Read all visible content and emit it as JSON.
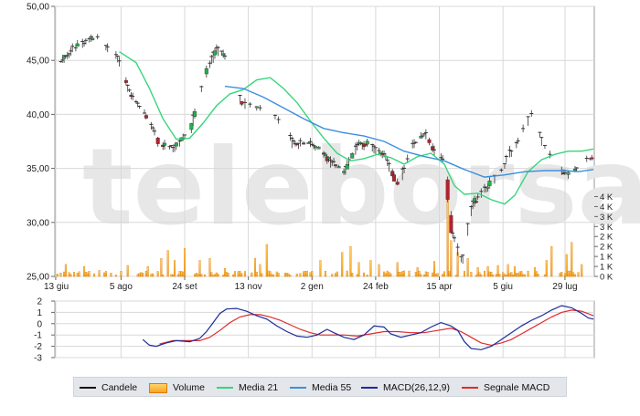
{
  "watermark": "teleborsa",
  "colors": {
    "up": "#22b24c",
    "down": "#b5222f",
    "wick": "#333333",
    "volume_fill": "#f5a623",
    "volume_edge": "#e07a00",
    "media21": "#36d67a",
    "media55": "#3a8fde",
    "macd": "#1b2c9c",
    "signal": "#e02a2a",
    "grid": "#d8d8d8"
  },
  "legend": [
    {
      "label": "Candele",
      "icon": "candle-line-swatch"
    },
    {
      "label": "Volume",
      "icon": "volume-bar-swatch"
    },
    {
      "label": "Media 21",
      "icon": "media21-line-swatch"
    },
    {
      "label": "Media 55",
      "icon": "media55-line-swatch"
    },
    {
      "label": "MACD(26,12,9)",
      "icon": "macd-line-swatch"
    },
    {
      "label": "Segnale MACD",
      "icon": "signal-line-swatch"
    }
  ],
  "chart_data": [
    {
      "type": "candlestick",
      "x_tick_labels": [
        "13 giu",
        "5 ago",
        "24 set",
        "13 nov",
        "2 gen",
        "24 feb",
        "15 apr",
        "5 giu",
        "29 lug"
      ],
      "x_tick_index": [
        0,
        39,
        77,
        115,
        153,
        191,
        229,
        267,
        304
      ],
      "ylim": [
        25,
        50
      ],
      "y_ticks": [
        "25,00",
        "30,00",
        "35,00",
        "40,00",
        "45,00",
        "50,00"
      ],
      "volume_ticks": [
        "0 K",
        "1 K",
        "1 K",
        "2 K",
        "2 K",
        "3 K",
        "3 K",
        "4 K",
        "4 K"
      ],
      "volume_max": 4250,
      "grid": true,
      "series": [
        {
          "name": "Candele",
          "kind": "ohlc"
        },
        {
          "name": "Volume",
          "kind": "bar",
          "axis": "right"
        },
        {
          "name": "Media 21",
          "kind": "line"
        },
        {
          "name": "Media 55",
          "kind": "line"
        }
      ],
      "price_path": [
        [
          0,
          44.6
        ],
        [
          12,
          46.3
        ],
        [
          24,
          47.1
        ],
        [
          36,
          45.4
        ],
        [
          44,
          41.8
        ],
        [
          54,
          39.7
        ],
        [
          62,
          37.2
        ],
        [
          70,
          36.9
        ],
        [
          80,
          38.6
        ],
        [
          88,
          43.4
        ],
        [
          96,
          46.2
        ],
        [
          104,
          44.6
        ],
        [
          110,
          41.2
        ],
        [
          118,
          40.8
        ],
        [
          126,
          40.2
        ],
        [
          134,
          39.3
        ],
        [
          142,
          37.3
        ],
        [
          150,
          37.4
        ],
        [
          158,
          36.6
        ],
        [
          164,
          35.6
        ],
        [
          172,
          34.6
        ],
        [
          180,
          37.3
        ],
        [
          188,
          37.2
        ],
        [
          196,
          36.1
        ],
        [
          204,
          33.4
        ],
        [
          212,
          37.0
        ],
        [
          220,
          38.3
        ],
        [
          226,
          36.4
        ],
        [
          232,
          35.6
        ],
        [
          236,
          29.0
        ],
        [
          242,
          26.4
        ],
        [
          248,
          31.6
        ],
        [
          254,
          32.7
        ],
        [
          262,
          34.1
        ],
        [
          270,
          36.1
        ],
        [
          278,
          38.4
        ],
        [
          284,
          40.2
        ],
        [
          290,
          37.4
        ],
        [
          298,
          35.2
        ],
        [
          304,
          34.3
        ],
        [
          312,
          35.3
        ],
        [
          321,
          36.2
        ]
      ],
      "media21_path": [
        [
          38,
          45.8
        ],
        [
          48,
          44.8
        ],
        [
          56,
          42.4
        ],
        [
          64,
          39.6
        ],
        [
          72,
          37.7
        ],
        [
          80,
          37.8
        ],
        [
          88,
          39.2
        ],
        [
          96,
          40.8
        ],
        [
          104,
          41.9
        ],
        [
          112,
          42.3
        ],
        [
          120,
          43.2
        ],
        [
          128,
          43.4
        ],
        [
          136,
          42.4
        ],
        [
          144,
          41.1
        ],
        [
          152,
          39.4
        ],
        [
          160,
          37.8
        ],
        [
          168,
          36.4
        ],
        [
          176,
          35.7
        ],
        [
          184,
          35.9
        ],
        [
          192,
          36.3
        ],
        [
          200,
          36.0
        ],
        [
          208,
          35.4
        ],
        [
          216,
          36.1
        ],
        [
          224,
          36.4
        ],
        [
          232,
          35.4
        ],
        [
          238,
          33.4
        ],
        [
          244,
          32.6
        ],
        [
          252,
          32.7
        ],
        [
          260,
          32.1
        ],
        [
          268,
          31.7
        ],
        [
          274,
          32.5
        ],
        [
          282,
          34.7
        ],
        [
          290,
          35.8
        ],
        [
          298,
          36.3
        ],
        [
          306,
          36.6
        ],
        [
          314,
          36.6
        ],
        [
          321,
          36.8
        ]
      ],
      "media55_path": [
        [
          101,
          42.6
        ],
        [
          112,
          42.4
        ],
        [
          124,
          41.6
        ],
        [
          136,
          40.6
        ],
        [
          148,
          39.6
        ],
        [
          160,
          38.7
        ],
        [
          172,
          38.3
        ],
        [
          184,
          38.0
        ],
        [
          196,
          37.5
        ],
        [
          208,
          36.6
        ],
        [
          220,
          36.1
        ],
        [
          232,
          35.7
        ],
        [
          244,
          34.9
        ],
        [
          256,
          34.2
        ],
        [
          268,
          34.4
        ],
        [
          280,
          34.7
        ],
        [
          292,
          34.8
        ],
        [
          304,
          34.8
        ],
        [
          312,
          34.7
        ],
        [
          321,
          34.9
        ]
      ],
      "volume_hotspots": [
        [
          6,
          600
        ],
        [
          17,
          500
        ],
        [
          26,
          300
        ],
        [
          43,
          550
        ],
        [
          55,
          500
        ],
        [
          63,
          900
        ],
        [
          67,
          1300
        ],
        [
          71,
          800
        ],
        [
          77,
          1400
        ],
        [
          86,
          800
        ],
        [
          92,
          900
        ],
        [
          101,
          400
        ],
        [
          119,
          900
        ],
        [
          122,
          600
        ],
        [
          126,
          1600
        ],
        [
          158,
          800
        ],
        [
          171,
          1200
        ],
        [
          176,
          1500
        ],
        [
          181,
          700
        ],
        [
          188,
          800
        ],
        [
          193,
          600
        ],
        [
          204,
          700
        ],
        [
          216,
          450
        ],
        [
          226,
          750
        ],
        [
          234,
          4250
        ],
        [
          236,
          1800
        ],
        [
          240,
          1200
        ],
        [
          246,
          900
        ],
        [
          252,
          450
        ],
        [
          258,
          500
        ],
        [
          264,
          550
        ],
        [
          270,
          600
        ],
        [
          274,
          500
        ],
        [
          286,
          450
        ],
        [
          293,
          800
        ],
        [
          296,
          1500
        ],
        [
          305,
          1100
        ],
        [
          308,
          1700
        ],
        [
          314,
          600
        ]
      ]
    },
    {
      "type": "line",
      "ylim": [
        -3,
        2
      ],
      "y_ticks": [
        "2",
        "1",
        "0",
        "-1",
        "-2",
        "-3"
      ],
      "grid": true,
      "series": [
        {
          "name": "MACD(26,12,9)",
          "points": [
            [
              52,
              -1.4
            ],
            [
              56,
              -1.9
            ],
            [
              60,
              -2.0
            ],
            [
              66,
              -1.7
            ],
            [
              72,
              -1.5
            ],
            [
              80,
              -1.6
            ],
            [
              86,
              -1.3
            ],
            [
              90,
              -0.7
            ],
            [
              94,
              0.1
            ],
            [
              98,
              0.9
            ],
            [
              102,
              1.3
            ],
            [
              108,
              1.35
            ],
            [
              114,
              1.1
            ],
            [
              120,
              0.7
            ],
            [
              126,
              0.4
            ],
            [
              132,
              -0.2
            ],
            [
              138,
              -0.7
            ],
            [
              144,
              -1.1
            ],
            [
              150,
              -1.2
            ],
            [
              156,
              -1.0
            ],
            [
              162,
              -0.5
            ],
            [
              166,
              -0.8
            ],
            [
              172,
              -1.2
            ],
            [
              178,
              -1.4
            ],
            [
              184,
              -1.0
            ],
            [
              190,
              -0.2
            ],
            [
              196,
              -0.3
            ],
            [
              200,
              -0.9
            ],
            [
              206,
              -1.2
            ],
            [
              212,
              -1.0
            ],
            [
              218,
              -0.8
            ],
            [
              224,
              -0.3
            ],
            [
              230,
              0.1
            ],
            [
              236,
              -0.2
            ],
            [
              240,
              -0.6
            ],
            [
              244,
              -1.6
            ],
            [
              248,
              -2.2
            ],
            [
              254,
              -2.3
            ],
            [
              260,
              -2.0
            ],
            [
              266,
              -1.4
            ],
            [
              272,
              -0.8
            ],
            [
              278,
              -0.2
            ],
            [
              284,
              0.3
            ],
            [
              290,
              0.7
            ],
            [
              296,
              1.2
            ],
            [
              302,
              1.6
            ],
            [
              308,
              1.4
            ],
            [
              314,
              0.9
            ],
            [
              318,
              0.5
            ],
            [
              321,
              0.4
            ]
          ]
        },
        {
          "name": "Segnale MACD",
          "points": [
            [
              62,
              -1.8
            ],
            [
              70,
              -1.5
            ],
            [
              78,
              -1.5
            ],
            [
              86,
              -1.5
            ],
            [
              92,
              -1.2
            ],
            [
              98,
              -0.6
            ],
            [
              104,
              0.1
            ],
            [
              110,
              0.6
            ],
            [
              116,
              0.8
            ],
            [
              122,
              0.8
            ],
            [
              128,
              0.6
            ],
            [
              134,
              0.3
            ],
            [
              140,
              -0.1
            ],
            [
              146,
              -0.5
            ],
            [
              152,
              -0.8
            ],
            [
              158,
              -1.0
            ],
            [
              164,
              -1.0
            ],
            [
              172,
              -1.0
            ],
            [
              180,
              -1.1
            ],
            [
              188,
              -0.9
            ],
            [
              196,
              -0.7
            ],
            [
              204,
              -0.7
            ],
            [
              212,
              -0.8
            ],
            [
              220,
              -0.8
            ],
            [
              228,
              -0.6
            ],
            [
              236,
              -0.4
            ],
            [
              242,
              -0.7
            ],
            [
              248,
              -1.2
            ],
            [
              254,
              -1.7
            ],
            [
              260,
              -1.9
            ],
            [
              266,
              -1.7
            ],
            [
              272,
              -1.4
            ],
            [
              278,
              -0.9
            ],
            [
              284,
              -0.4
            ],
            [
              290,
              0.1
            ],
            [
              296,
              0.6
            ],
            [
              302,
              1.0
            ],
            [
              308,
              1.2
            ],
            [
              314,
              1.1
            ],
            [
              321,
              0.7
            ]
          ]
        }
      ]
    }
  ]
}
